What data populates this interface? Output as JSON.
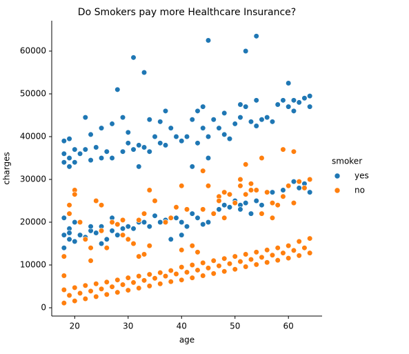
{
  "chart_data": {
    "type": "scatter",
    "title": "Do Smokers pay more Healthcare Insurance?",
    "xlabel": "age",
    "ylabel": "charges",
    "legend_title": "smoker",
    "legend": "right",
    "xlim": [
      15.7,
      66.3
    ],
    "xticks": [
      20,
      30,
      40,
      50,
      60
    ],
    "ylim": [
      -1935,
      67100
    ],
    "yticks": [
      0,
      10000,
      20000,
      30000,
      40000,
      50000,
      60000
    ],
    "series": [
      {
        "name": "yes",
        "color": "#1f77b4",
        "x": [
          18,
          18,
          18,
          19,
          19,
          19,
          20,
          20,
          21,
          22,
          23,
          23,
          24,
          25,
          25,
          26,
          27,
          27,
          28,
          28,
          29,
          30,
          31,
          32,
          33,
          34,
          35,
          36,
          37,
          38,
          39,
          40,
          40,
          41,
          42,
          43,
          44,
          45,
          46,
          47,
          47,
          48,
          49,
          50,
          51,
          51,
          52,
          53,
          54,
          55,
          57,
          59,
          60,
          61,
          62,
          63,
          64,
          64,
          18,
          18,
          18,
          19,
          19,
          19,
          20,
          20,
          21,
          22,
          22,
          23,
          23,
          24,
          25,
          25,
          26,
          27,
          27,
          28,
          29,
          29,
          30,
          30,
          31,
          31,
          32,
          32,
          33,
          33,
          34,
          34,
          35,
          36,
          36,
          37,
          37,
          38,
          39,
          40,
          41,
          42,
          42,
          43,
          43,
          44,
          44,
          45,
          45,
          45,
          46,
          47,
          48,
          48,
          49,
          50,
          51,
          51,
          52,
          52,
          53,
          54,
          54,
          54,
          55,
          56,
          57,
          58,
          59,
          60,
          60,
          61,
          61,
          62,
          63,
          64,
          64
        ],
        "values": [
          14000,
          17000,
          21000,
          16000,
          18500,
          17500,
          15500,
          20000,
          17000,
          16500,
          18000,
          19000,
          17500,
          15000,
          19000,
          16000,
          18000,
          21000,
          17000,
          19500,
          18500,
          19000,
          18500,
          20000,
          20000,
          19000,
          21500,
          20000,
          20500,
          16000,
          21000,
          17000,
          20000,
          19000,
          22000,
          21000,
          19500,
          20000,
          22000,
          23000,
          25000,
          24000,
          23500,
          25000,
          24000,
          23000,
          24500,
          22000,
          25000,
          24000,
          27000,
          27500,
          28500,
          29500,
          28000,
          29000,
          30000,
          27000,
          34000,
          36000,
          39000,
          33000,
          35000,
          39500,
          37000,
          34000,
          36000,
          44500,
          37000,
          40500,
          34500,
          37500,
          42000,
          35000,
          36500,
          43000,
          35000,
          51000,
          44500,
          36500,
          38500,
          41000,
          58500,
          37000,
          33000,
          38000,
          55000,
          37500,
          44000,
          36500,
          40000,
          43500,
          38500,
          46000,
          38000,
          42000,
          40000,
          39000,
          40000,
          44000,
          33000,
          46000,
          38500,
          47000,
          42000,
          62500,
          35000,
          40000,
          44000,
          42000,
          45500,
          40500,
          39500,
          43000,
          47500,
          44500,
          60000,
          47000,
          43500,
          63500,
          48500,
          42500,
          44000,
          44500,
          43500,
          47500,
          48500,
          52500,
          47000,
          48500,
          46000,
          48000,
          49000,
          49500,
          47000
        ]
      },
      {
        "name": "no",
        "color": "#ff7f0e",
        "x": [
          18,
          18,
          20,
          20,
          22,
          22,
          24,
          24,
          26,
          26,
          28,
          28,
          30,
          30,
          32,
          32,
          34,
          34,
          36,
          36,
          38,
          38,
          40,
          40,
          42,
          42,
          44,
          44,
          46,
          46,
          48,
          48,
          50,
          50,
          52,
          52,
          54,
          54,
          56,
          56,
          58,
          58,
          60,
          60,
          62,
          62,
          64,
          64,
          19,
          21,
          23,
          25,
          27,
          29,
          31,
          33,
          35,
          37,
          39,
          41,
          43,
          45,
          47,
          49,
          51,
          53,
          55,
          57,
          59,
          61,
          63,
          18,
          18,
          19,
          19,
          20,
          20,
          21,
          22,
          23,
          23,
          24,
          25,
          25,
          26,
          27,
          28,
          29,
          29,
          30,
          31,
          32,
          32,
          33,
          33,
          34,
          34,
          35,
          37,
          38,
          39,
          40,
          40,
          41,
          42,
          43,
          44,
          44,
          45,
          46,
          47,
          47,
          48,
          48,
          49,
          50,
          51,
          51,
          52,
          52,
          53,
          53,
          54,
          55,
          55,
          56,
          57,
          57,
          58,
          59,
          59,
          60,
          61,
          61,
          62,
          63,
          64
        ],
        "values": [
          1100,
          4200,
          1600,
          4700,
          2100,
          5200,
          2600,
          5600,
          3100,
          6000,
          3600,
          6500,
          4100,
          7000,
          4600,
          7400,
          5100,
          7800,
          5600,
          8200,
          6100,
          8700,
          6500,
          9500,
          7000,
          10000,
          7500,
          10500,
          8000,
          11000,
          8500,
          11500,
          9000,
          12000,
          9600,
          12500,
          10100,
          13000,
          10600,
          13500,
          11100,
          14000,
          11600,
          14500,
          12200,
          15500,
          12800,
          16200,
          2900,
          3400,
          3900,
          4400,
          4900,
          5400,
          5900,
          6400,
          6900,
          7400,
          7900,
          8300,
          8800,
          9300,
          9800,
          10300,
          10800,
          11300,
          11800,
          12300,
          12800,
          13400,
          14000,
          7500,
          12000,
          22000,
          24000,
          27500,
          26500,
          20000,
          16000,
          11000,
          14000,
          25000,
          24000,
          18000,
          14000,
          20000,
          19500,
          17000,
          20500,
          16000,
          15000,
          12000,
          20500,
          12500,
          22000,
          27500,
          14500,
          25000,
          20000,
          21000,
          23500,
          28500,
          13500,
          23000,
          14500,
          13000,
          32000,
          23000,
          28500,
          22000,
          26000,
          25000,
          27000,
          21000,
          26500,
          24500,
          28500,
          30000,
          33500,
          26500,
          29000,
          27500,
          27500,
          35000,
          22000,
          27000,
          24500,
          21000,
          24000,
          37000,
          26000,
          28500,
          36500,
          24500,
          29500,
          28000,
          30000
        ]
      }
    ]
  }
}
